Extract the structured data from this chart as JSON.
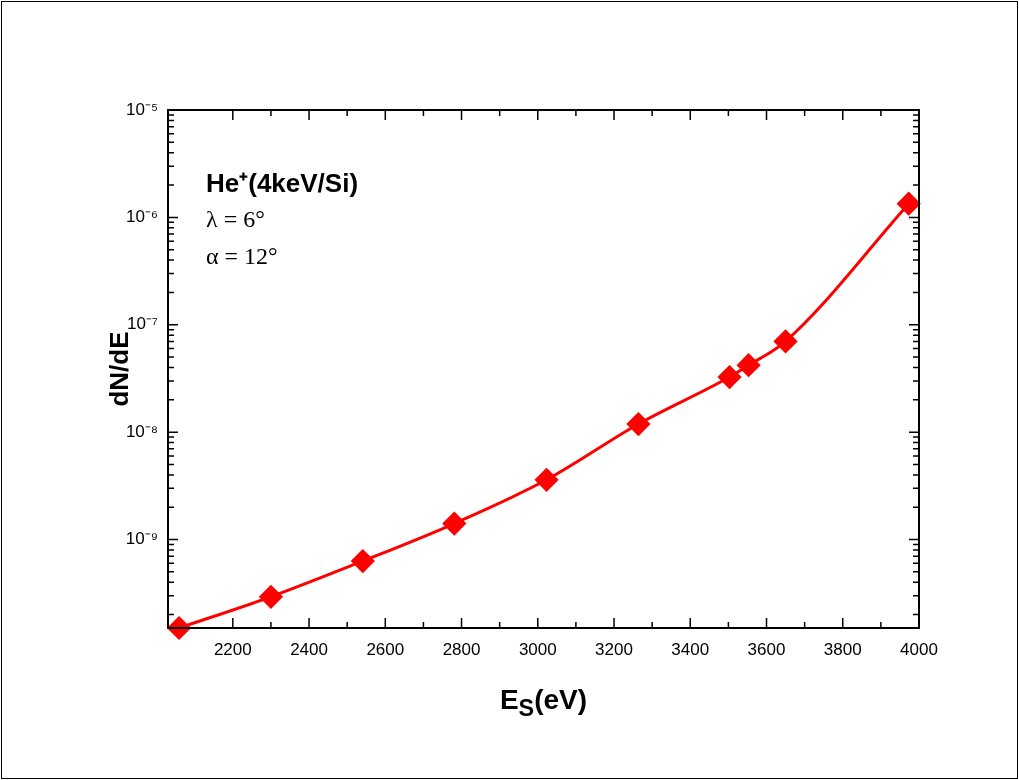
{
  "chart_data": {
    "type": "line",
    "xlabel": "E$_{S}$(eV)",
    "ylabel": "dN/dE",
    "annotations": [
      "He⁺(4keV/Si)",
      "λ = 6°",
      "α = 12°"
    ],
    "x": [
      2059,
      2300,
      2541,
      2781,
      3023,
      3264,
      3503,
      3553,
      3650,
      3973
    ],
    "series": [
      {
        "color": "#ff0000",
        "values": [
          1.5e-10,
          2.93e-10,
          6.3e-10,
          1.41e-09,
          3.6e-09,
          1.19e-08,
          3.26e-08,
          4.2e-08,
          7e-08,
          1.34e-06
        ]
      }
    ],
    "log": "y",
    "xlim": [
      2030,
      4000
    ],
    "ylim": [
      1.5e-10,
      1e-05
    ],
    "xticks": [
      2200,
      2400,
      2600,
      2800,
      3000,
      3200,
      3400,
      3600,
      3800,
      4000
    ],
    "yticks": [
      {
        "value": 1e-09,
        "label": "10⁻⁹"
      },
      {
        "value": 1e-08,
        "label": "10⁻⁸"
      },
      {
        "value": 1e-07,
        "label": "10⁻⁷"
      },
      {
        "value": 1e-06,
        "label": "10⁻⁶"
      },
      {
        "value": 1e-05,
        "label": "10⁻⁵"
      }
    ],
    "grid": false,
    "legend": false,
    "marker": "diamond",
    "line_style": "solid"
  }
}
